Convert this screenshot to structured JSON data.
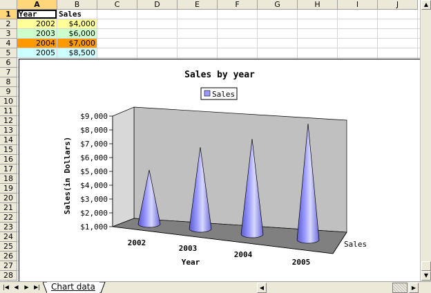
{
  "sheet": {
    "columns": [
      "A",
      "B",
      "C",
      "D",
      "E",
      "F",
      "G",
      "H",
      "I",
      "J"
    ],
    "rows": [
      "1",
      "2",
      "3",
      "4",
      "5",
      "6",
      "7",
      "8",
      "9",
      "10",
      "11",
      "12",
      "13",
      "14",
      "15",
      "16",
      "17",
      "18",
      "19",
      "20",
      "21",
      "22",
      "23",
      "24",
      "25",
      "26",
      "27",
      "28"
    ],
    "headers": {
      "year": "Year",
      "sales": "Sales"
    },
    "data_rows": [
      {
        "year": "2002",
        "sales": "$4,000",
        "year_bg": "#ffff99",
        "sales_bg": "#ffff99"
      },
      {
        "year": "2003",
        "sales": "$6,000",
        "year_bg": "#ccffcc",
        "sales_bg": "#ccffcc"
      },
      {
        "year": "2004",
        "sales": "$7,000",
        "year_bg": "#ff9900",
        "sales_bg": "#ff9900"
      },
      {
        "year": "2005",
        "sales": "$8,500",
        "year_bg": "#ccffff",
        "sales_bg": "#ccffff"
      }
    ]
  },
  "chart_data": {
    "type": "bar",
    "bar_shape": "3d-cone",
    "title": "Sales by year",
    "xlabel": "Year",
    "ylabel": "Sales(in Dollars)",
    "zlabel": "Sales",
    "categories": [
      "2002",
      "2003",
      "2004",
      "2005"
    ],
    "series": [
      {
        "name": "Sales",
        "values": [
          4000,
          6000,
          7000,
          8500
        ]
      }
    ],
    "ylim": [
      1000,
      9000
    ],
    "yticks": [
      "$1,000",
      "$2,000",
      "$3,000",
      "$4,000",
      "$5,000",
      "$6,000",
      "$7,000",
      "$8,000",
      "$9,000"
    ],
    "legend_position": "top",
    "colors": {
      "cone": "#9999ff",
      "back_wall": "#c0c0c0",
      "floor": "#808080"
    }
  },
  "tabs": {
    "sheet_name": "Chart data"
  },
  "icons": {
    "first": "first-sheet-icon",
    "prev": "prev-sheet-icon",
    "next": "next-sheet-icon",
    "last": "last-sheet-icon"
  }
}
